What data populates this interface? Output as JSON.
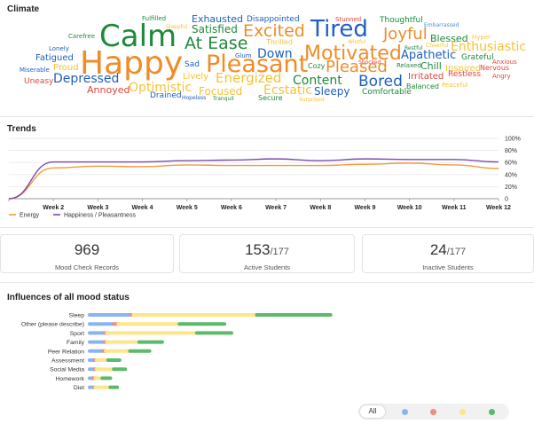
{
  "sections": {
    "climate": "Climate",
    "trends": "Trends",
    "influences": "Influences of all mood status"
  },
  "colors": {
    "blue": "#1f5fbf",
    "lightblue": "#4a8fd8",
    "orange": "#f08c28",
    "yellow": "#f6c235",
    "green": "#1e8a3a",
    "red": "#e0443c",
    "energy": "#f39a3a",
    "happiness": "#7a4ab0",
    "bar_blue": "#8ab4f0",
    "bar_red": "#f28b82",
    "bar_yellow": "#fde58a",
    "bar_green": "#5cba6a"
  },
  "word_cloud": [
    {
      "text": "Fulfilled",
      "color": "green",
      "size": 7
    },
    {
      "text": "Exhausted",
      "color": "blue",
      "size": 11
    },
    {
      "text": "Disappointed",
      "color": "blue",
      "size": 9
    },
    {
      "text": "Stunned",
      "color": "red",
      "size": 7
    },
    {
      "text": "Thoughtful",
      "color": "green",
      "size": 9
    },
    {
      "text": "Embarrassed",
      "color": "lightblue",
      "size": 6
    },
    {
      "text": "Climate",
      "color": "green",
      "size": 0
    },
    {
      "text": "Carefree",
      "color": "green",
      "size": 7
    },
    {
      "text": "Calm",
      "color": "green",
      "size": 34
    },
    {
      "text": "Sleepful",
      "color": "yellow",
      "size": 6
    },
    {
      "text": "Satisfied",
      "color": "green",
      "size": 12
    },
    {
      "text": "Excited",
      "color": "orange",
      "size": 19
    },
    {
      "text": "Tired",
      "color": "blue",
      "size": 26
    },
    {
      "text": "Joyful",
      "color": "orange",
      "size": 18
    },
    {
      "text": "Blessed",
      "color": "green",
      "size": 11
    },
    {
      "text": "Hyper",
      "color": "yellow",
      "size": 7
    },
    {
      "text": "Lonely",
      "color": "blue",
      "size": 7
    },
    {
      "text": "At Ease",
      "color": "green",
      "size": 19
    },
    {
      "text": "Thrilled",
      "color": "yellow",
      "size": 8
    },
    {
      "text": "Wistful",
      "color": "yellow",
      "size": 6
    },
    {
      "text": "Restful",
      "color": "green",
      "size": 6
    },
    {
      "text": "Cheerful",
      "color": "yellow",
      "size": 6
    },
    {
      "text": "Enthusiastic",
      "color": "yellow",
      "size": 14
    },
    {
      "text": "Fatigued",
      "color": "blue",
      "size": 10
    },
    {
      "text": "Happy",
      "color": "orange",
      "size": 36
    },
    {
      "text": "Glum",
      "color": "blue",
      "size": 7
    },
    {
      "text": "Down",
      "color": "blue",
      "size": 14
    },
    {
      "text": "Motivated",
      "color": "orange",
      "size": 22
    },
    {
      "text": "Apathetic",
      "color": "blue",
      "size": 13
    },
    {
      "text": "Grateful",
      "color": "green",
      "size": 9
    },
    {
      "text": "Anxious",
      "color": "red",
      "size": 7
    },
    {
      "text": "Sad",
      "color": "blue",
      "size": 9
    },
    {
      "text": "Pleasant",
      "color": "orange",
      "size": 27
    },
    {
      "text": "Shocked",
      "color": "red",
      "size": 6
    },
    {
      "text": "Relaxed",
      "color": "green",
      "size": 7
    },
    {
      "text": "Chill",
      "color": "green",
      "size": 11
    },
    {
      "text": "Inspired",
      "color": "yellow",
      "size": 10
    },
    {
      "text": "Nervous",
      "color": "red",
      "size": 8
    },
    {
      "text": "Miserable",
      "color": "blue",
      "size": 7
    },
    {
      "text": "Proud",
      "color": "yellow",
      "size": 10
    },
    {
      "text": "Cozy",
      "color": "green",
      "size": 8
    },
    {
      "text": "Pleased",
      "color": "orange",
      "size": 18
    },
    {
      "text": "Angry",
      "color": "red",
      "size": 7
    },
    {
      "text": "Uneasy",
      "color": "red",
      "size": 9
    },
    {
      "text": "Depressed",
      "color": "blue",
      "size": 14
    },
    {
      "text": "Lively",
      "color": "yellow",
      "size": 10
    },
    {
      "text": "Energized",
      "color": "yellow",
      "size": 15
    },
    {
      "text": "Content",
      "color": "green",
      "size": 14
    },
    {
      "text": "Bored",
      "color": "blue",
      "size": 17
    },
    {
      "text": "Irritated",
      "color": "red",
      "size": 10
    },
    {
      "text": "Restless",
      "color": "red",
      "size": 9
    },
    {
      "text": "Annoyed",
      "color": "red",
      "size": 11
    },
    {
      "text": "Optimistic",
      "color": "yellow",
      "size": 14
    },
    {
      "text": "Ecstatic",
      "color": "yellow",
      "size": 14
    },
    {
      "text": "Balanced",
      "color": "green",
      "size": 8
    },
    {
      "text": "Peaceful",
      "color": "yellow",
      "size": 7
    },
    {
      "text": "Focused",
      "color": "yellow",
      "size": 12
    },
    {
      "text": "Sleepy",
      "color": "blue",
      "size": 12
    },
    {
      "text": "Comfortable",
      "color": "green",
      "size": 9
    },
    {
      "text": "Drained",
      "color": "blue",
      "size": 9
    },
    {
      "text": "Hopeless",
      "color": "blue",
      "size": 6
    },
    {
      "text": "Tranquil",
      "color": "green",
      "size": 6
    },
    {
      "text": "Secure",
      "color": "green",
      "size": 8
    },
    {
      "text": "Surprised",
      "color": "yellow",
      "size": 6
    }
  ],
  "chart_data": [
    {
      "type": "line",
      "categories": [
        "",
        "Week 2",
        "Week 3",
        "Week 4",
        "Week 5",
        "Week 6",
        "Week 7",
        "Week 8",
        "Week 9",
        "Week 10",
        "Week 11",
        "Week 12"
      ],
      "ylim": [
        0,
        100
      ],
      "yticks": [
        "0",
        "20%",
        "40%",
        "60%",
        "80%",
        "100%"
      ],
      "grid": true,
      "legend_position": "bottom-left",
      "series": [
        {
          "name": "Energy",
          "color": "energy",
          "values": [
            0,
            51,
            54,
            53,
            56,
            55,
            55,
            55,
            57,
            59,
            56,
            50
          ]
        },
        {
          "name": "Happiness / Pleasantness",
          "color": "happiness",
          "values": [
            0,
            61,
            61,
            61,
            63,
            64,
            66,
            63,
            66,
            65,
            65,
            61
          ]
        }
      ]
    },
    {
      "type": "bar",
      "orientation": "horizontal",
      "stacked": true,
      "categories": [
        "Sleep",
        "Other (please describe)",
        "Sport",
        "Family",
        "Peer Relation",
        "Assessment",
        "Social Media",
        "Homework",
        "Diet"
      ],
      "series": [
        {
          "name": "blue",
          "color": "bar_blue",
          "values": [
            36,
            21,
            13,
            13,
            12,
            5,
            5,
            3,
            4
          ]
        },
        {
          "name": "red",
          "color": "bar_red",
          "values": [
            2,
            4,
            2,
            2,
            2,
            1,
            1,
            2,
            1
          ]
        },
        {
          "name": "yellow",
          "color": "bar_yellow",
          "values": [
            107,
            53,
            78,
            28,
            21,
            10,
            15,
            6,
            13
          ]
        },
        {
          "name": "green",
          "color": "bar_green",
          "values": [
            64,
            39,
            30,
            20,
            17,
            10,
            10,
            7,
            6
          ]
        }
      ]
    }
  ],
  "stats": [
    {
      "value": "969",
      "denominator": "",
      "label": "Mood Check Records",
      "color": "#222222"
    },
    {
      "value": "153",
      "denominator": "/177",
      "label": "Active Students",
      "color": "#2f6fd0"
    },
    {
      "value": "24",
      "denominator": "/177",
      "label": "Inactive Students",
      "color": "#f08c28"
    }
  ],
  "filter": {
    "all_label": "All",
    "dots": [
      "bar_blue",
      "bar_red",
      "bar_yellow",
      "bar_green"
    ]
  }
}
